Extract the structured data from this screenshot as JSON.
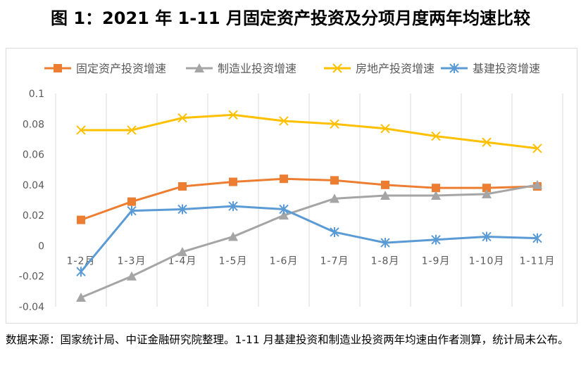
{
  "title": "图 1：2021 年 1-11 月固定资产投资及分项月度两年均速比较",
  "source_note": "数据来源：国家统计局、中证金融研究院整理。1-11 月基建投资和制造业投资两年均速由作者测算，统计局未公布。",
  "colors": {
    "fixed": "#ed7d31",
    "manufacturing": "#a5a5a5",
    "realestate": "#ffc000",
    "infra": "#5b9bd5",
    "grid": "#d9d9d9",
    "text": "#595959"
  },
  "chart_data": {
    "type": "line",
    "categories": [
      "1-2月",
      "1-3月",
      "1-4月",
      "1-5月",
      "1-6月",
      "1-7月",
      "1-8月",
      "1-9月",
      "1-10月",
      "1-11月"
    ],
    "ylim": [
      -0.04,
      0.1
    ],
    "yticks": [
      "0.1",
      "0.08",
      "0.06",
      "0.04",
      "0.02",
      "0",
      "-0.02",
      "-0.04"
    ],
    "legend_position": "top",
    "grid": "vertical",
    "series": [
      {
        "name": "固定资产投资增速",
        "marker": "square",
        "values": [
          0.017,
          0.029,
          0.039,
          0.042,
          0.044,
          0.043,
          0.04,
          0.038,
          0.038,
          0.039
        ]
      },
      {
        "name": "制造业投资增速",
        "marker": "triangle",
        "values": [
          -0.034,
          -0.02,
          -0.004,
          0.006,
          0.02,
          0.031,
          0.033,
          0.033,
          0.034,
          0.04
        ]
      },
      {
        "name": "房地产投资增速",
        "marker": "x",
        "values": [
          0.076,
          0.076,
          0.084,
          0.086,
          0.082,
          0.08,
          0.077,
          0.072,
          0.068,
          0.064
        ]
      },
      {
        "name": "基建投资增速",
        "marker": "star",
        "values": [
          -0.017,
          0.023,
          0.024,
          0.026,
          0.024,
          0.009,
          0.002,
          0.004,
          0.006,
          0.005
        ]
      }
    ]
  }
}
